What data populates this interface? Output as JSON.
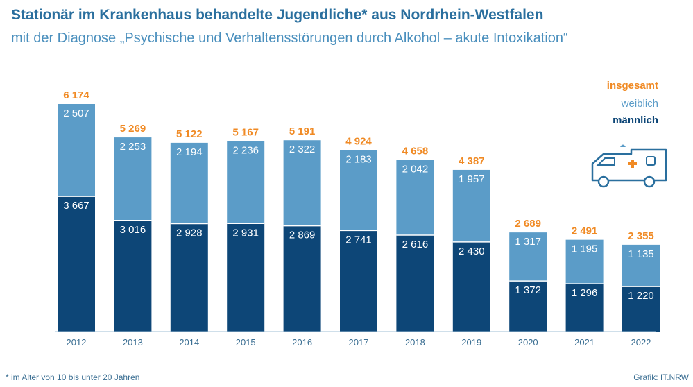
{
  "header": {
    "title": "Stationär im Krankenhaus behandelte Jugendliche* aus Nordrhein-Westfalen",
    "subtitle": "mit der Diagnose „Psychische und Verhaltensstörungen durch Alkohol – akute Intoxikation“"
  },
  "legend": {
    "total": "insgesamt",
    "female": "weiblich",
    "male": "männlich"
  },
  "footer": {
    "footnote": "*  im Alter von 10 bis unter 20 Jahren",
    "source": "Grafik: IT.NRW"
  },
  "colors": {
    "male": "#0d4677",
    "female": "#5b9cc8",
    "total": "#f08a24",
    "title": "#2a6f9e",
    "axis": "#3a6e92"
  },
  "icon": "ambulance-icon",
  "chart_data": {
    "type": "bar",
    "stacked": true,
    "categories": [
      "2012",
      "2013",
      "2014",
      "2015",
      "2016",
      "2017",
      "2018",
      "2019",
      "2020",
      "2021",
      "2022"
    ],
    "series": [
      {
        "name": "männlich",
        "values": [
          3667,
          3016,
          2928,
          2931,
          2869,
          2741,
          2616,
          2430,
          1372,
          1296,
          1220
        ]
      },
      {
        "name": "weiblich",
        "values": [
          2507,
          2253,
          2194,
          2236,
          2322,
          2183,
          2042,
          1957,
          1317,
          1195,
          1135
        ]
      }
    ],
    "totals_series": {
      "name": "insgesamt",
      "values": [
        6174,
        5269,
        5122,
        5167,
        5191,
        4924,
        4658,
        4387,
        2689,
        2491,
        2355
      ]
    },
    "value_labels": {
      "male": [
        "3 667",
        "3 016",
        "2 928",
        "2 931",
        "2 869",
        "2 741",
        "2 616",
        "2 430",
        "1 372",
        "1 296",
        "1 220"
      ],
      "female": [
        "2 507",
        "2 253",
        "2 194",
        "2 236",
        "2 322",
        "2 183",
        "2 042",
        "1 957",
        "1 317",
        "1 195",
        "1 135"
      ],
      "total": [
        "6 174",
        "5 269",
        "5 122",
        "5 167",
        "5 191",
        "4 924",
        "4 658",
        "4 387",
        "2 689",
        "2 491",
        "2 355"
      ]
    },
    "ylim": [
      0,
      6174
    ],
    "grid": false,
    "legend_position": "top-right"
  }
}
